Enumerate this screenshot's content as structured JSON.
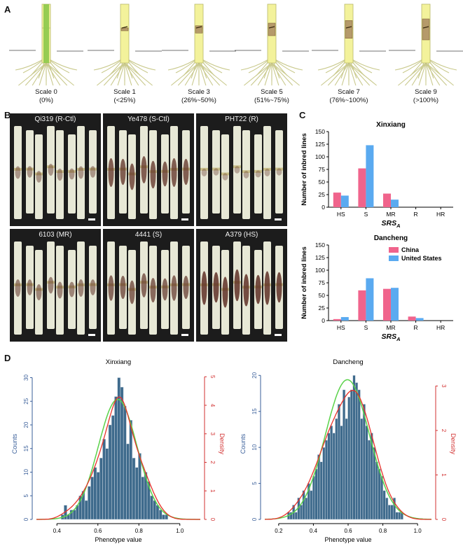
{
  "panels": {
    "A": "A",
    "B": "B",
    "C": "C",
    "D": "D"
  },
  "panelA": {
    "scales": [
      {
        "name": "Scale 0",
        "range": "(0%)",
        "lesion": 0
      },
      {
        "name": "Scale 1",
        "range": "(<25%)",
        "lesion": 0.1
      },
      {
        "name": "Scale 3",
        "range": "(26%~50%)",
        "lesion": 0.35
      },
      {
        "name": "Scale 5",
        "range": "(51%~75%)",
        "lesion": 0.6
      },
      {
        "name": "Scale 7",
        "range": "(76%~100%)",
        "lesion": 0.85
      },
      {
        "name": "Scale 9",
        "range": "(>100%)",
        "lesion": 1.0
      }
    ]
  },
  "panelB": {
    "tiles": [
      {
        "label": "Qi319 (R-Ctl)",
        "severity": 0.3
      },
      {
        "label": "Ye478 (S-Ctl)",
        "severity": 0.8
      },
      {
        "label": "PHT22 (R)",
        "severity": 0.15
      },
      {
        "label": "6103 (MR)",
        "severity": 0.45
      },
      {
        "label": "4441 (S)",
        "severity": 0.7
      },
      {
        "label": "A379 (HS)",
        "severity": 0.95
      }
    ]
  },
  "chart_data": [
    {
      "type": "bar",
      "title": "Xinxiang",
      "xlabel": "SRS_A",
      "ylabel": "Number of inbred lines",
      "categories": [
        "HS",
        "S",
        "MR",
        "R",
        "HR"
      ],
      "ylim": [
        0,
        150
      ],
      "yticks": [
        "0",
        "25",
        "50",
        "75",
        "100",
        "125",
        "150"
      ],
      "series": [
        {
          "name": "China",
          "color": "#f0648c",
          "values": [
            29,
            77,
            27,
            0,
            0
          ]
        },
        {
          "name": "United States",
          "color": "#5aaaf0",
          "values": [
            23,
            123,
            15,
            0,
            0
          ]
        }
      ]
    },
    {
      "type": "bar",
      "title": "Dancheng",
      "xlabel": "SRS_A",
      "ylabel": "Number of inbred lines",
      "categories": [
        "HS",
        "S",
        "MR",
        "R",
        "HR"
      ],
      "ylim": [
        0,
        150
      ],
      "yticks": [
        "0",
        "25",
        "50",
        "75",
        "100",
        "125",
        "150"
      ],
      "legend": [
        "China",
        "United States"
      ],
      "series": [
        {
          "name": "China",
          "color": "#f0648c",
          "values": [
            3,
            60,
            63,
            8,
            0
          ]
        },
        {
          "name": "United States",
          "color": "#5aaaf0",
          "values": [
            7,
            84,
            65,
            5,
            0
          ]
        }
      ]
    },
    {
      "type": "bar",
      "title": "Xinxiang",
      "xlabel": "Phenotype value",
      "ylabel": "Counts",
      "y2label": "Density",
      "xlim": [
        0.3,
        1.1
      ],
      "xticks": [
        "0.4",
        "0.6",
        "0.8",
        "1.0"
      ],
      "ylim": [
        0,
        32
      ],
      "yticks": [
        "0",
        "5",
        "10",
        "15",
        "20",
        "25",
        "30"
      ],
      "y2lim": [
        0,
        5.3
      ],
      "y2ticks": [
        "0",
        "1",
        "2",
        "3",
        "4",
        "5"
      ],
      "bin_start": 0.42,
      "bin_width": 0.0145,
      "counts": [
        1,
        3,
        1,
        2,
        2,
        3,
        5,
        6,
        4,
        7,
        9,
        11,
        10,
        13,
        17,
        15,
        20,
        22,
        26,
        30,
        28,
        24,
        16,
        21,
        13,
        11,
        14,
        9,
        10,
        8,
        5,
        4,
        3,
        2,
        1,
        1
      ],
      "curve_colors": {
        "kde": "#e8322a",
        "normal": "#5ad24a",
        "bars": "#3e6a8c"
      }
    },
    {
      "type": "bar",
      "title": "Dancheng",
      "xlabel": "Phenotype value",
      "ylabel": "Counts",
      "y2label": "Density",
      "xlim": [
        0.12,
        1.08
      ],
      "xticks": [
        "0.2",
        "0.4",
        "0.6",
        "0.8",
        "1.0"
      ],
      "ylim": [
        0,
        21
      ],
      "yticks": [
        "0",
        "5",
        "10",
        "15",
        "20"
      ],
      "y2lim": [
        0,
        3.4
      ],
      "y2ticks": [
        "0",
        "1",
        "2",
        "3"
      ],
      "bin_start": 0.25,
      "bin_width": 0.0145,
      "counts": [
        1,
        1,
        2,
        1,
        3,
        2,
        4,
        3,
        5,
        4,
        6,
        7,
        9,
        8,
        10,
        11,
        12,
        13,
        12,
        14,
        16,
        13,
        18,
        14,
        17,
        18,
        20,
        19,
        18,
        14,
        16,
        13,
        11,
        12,
        10,
        8,
        7,
        6,
        4,
        3,
        2,
        2,
        3,
        1,
        1,
        1
      ],
      "curve_colors": {
        "kde": "#e8322a",
        "normal": "#5ad24a",
        "bars": "#3e6a8c"
      }
    }
  ]
}
